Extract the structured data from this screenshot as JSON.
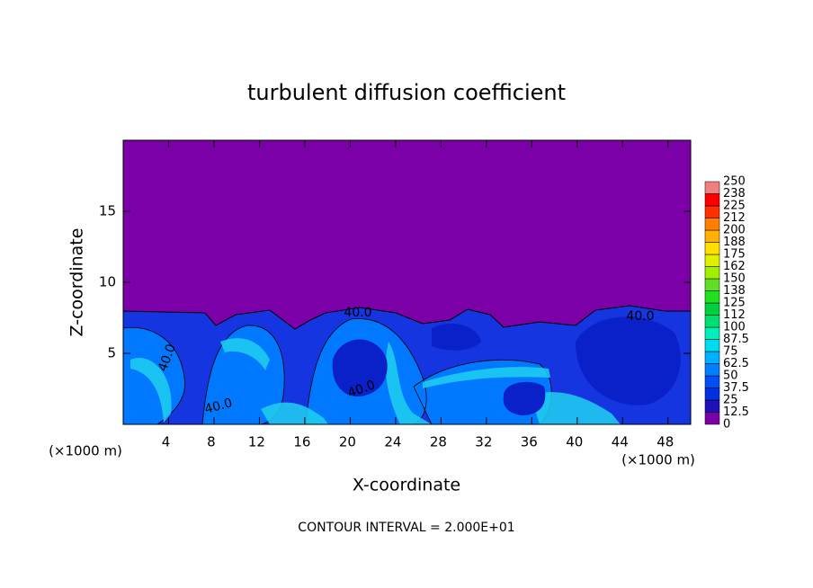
{
  "chart_data": {
    "type": "contour",
    "title": "turbulent diffusion coefficient",
    "x_label": "X-coordinate",
    "y_label": "Z-coordinate",
    "x_unit_label": "(×1000 m)",
    "y_unit_label": "(×1000 m)",
    "footer": "CONTOUR INTERVAL = 2.000E+01",
    "xlim": [
      0,
      50
    ],
    "ylim": [
      0,
      20
    ],
    "xticks": [
      4,
      8,
      12,
      16,
      20,
      24,
      28,
      32,
      36,
      40,
      44,
      48
    ],
    "yticks": [
      5,
      10,
      15
    ],
    "contour_labels": [
      "40.0",
      "40.0",
      "40.0",
      "40.0",
      "40.0"
    ],
    "colorbar": {
      "ticks": [
        0,
        12.5,
        25,
        37.5,
        50,
        62.5,
        75,
        87.5,
        100,
        112,
        125,
        138,
        150,
        162,
        175,
        188,
        200,
        212,
        225,
        238,
        250
      ],
      "colors": [
        "#7b00a8",
        "#2010b8",
        "#0030e0",
        "#0050f8",
        "#0080ff",
        "#00b0ff",
        "#00dcf0",
        "#00f0b8",
        "#00e070",
        "#00d040",
        "#20e020",
        "#60e020",
        "#a0f000",
        "#e0f000",
        "#ffe000",
        "#ffb000",
        "#ff8000",
        "#ff3000",
        "#ff0000",
        "#f08080"
      ]
    }
  }
}
